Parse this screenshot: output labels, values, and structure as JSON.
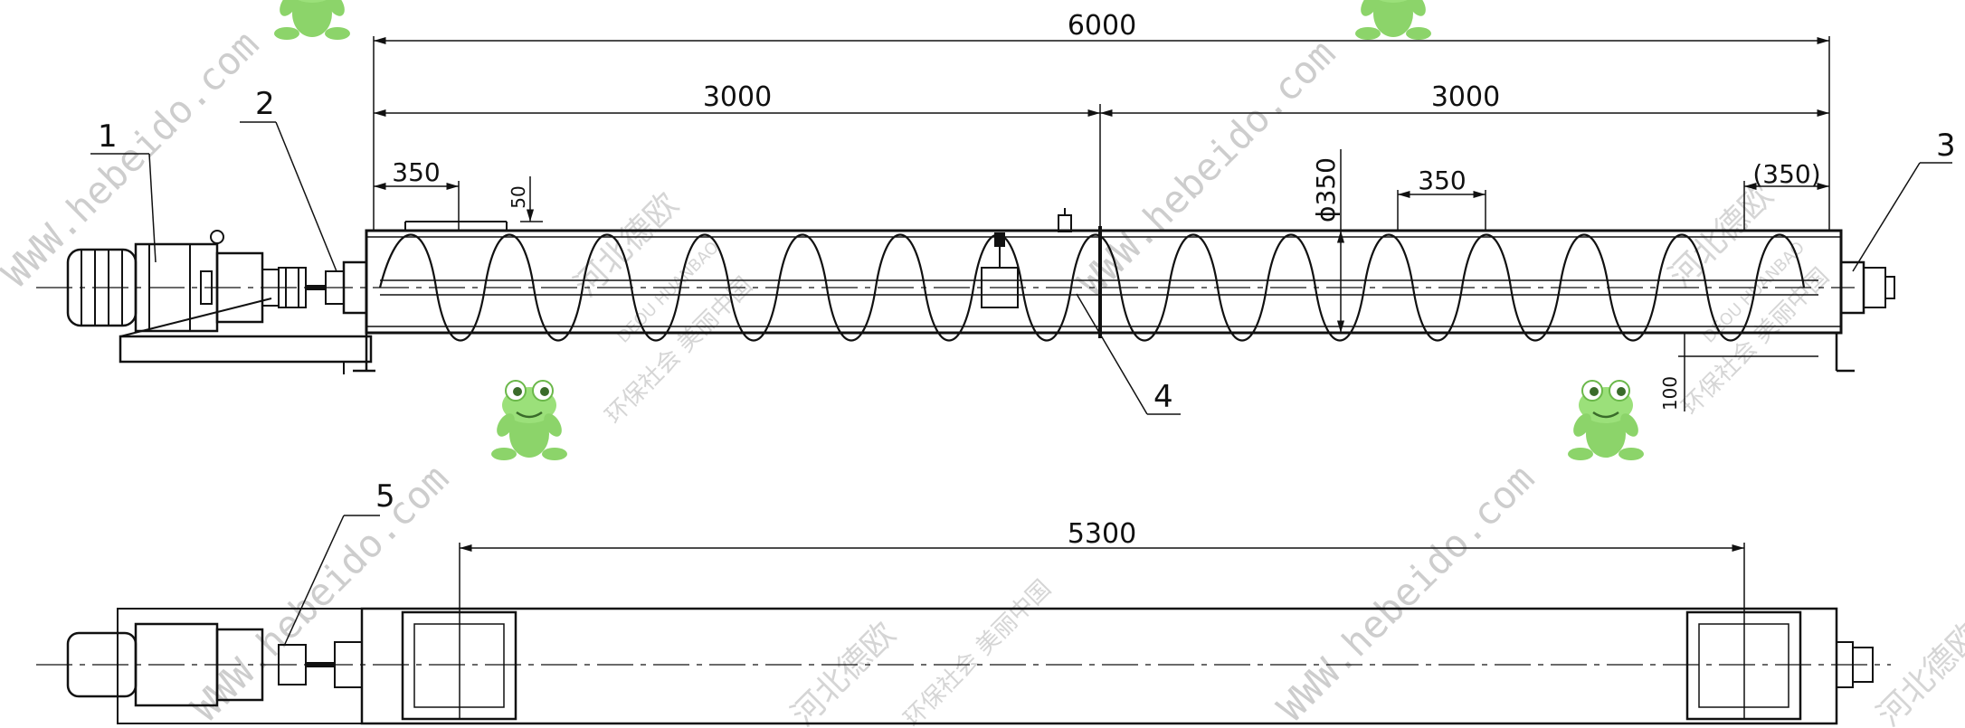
{
  "dimensions": {
    "overall_length": "6000",
    "section_left": "3000",
    "section_right": "3000",
    "pitch_left": "350",
    "pitch_right": "350",
    "end_pitch_ref": "(350)",
    "flange_height": "50",
    "screw_diameter": "ϕ350",
    "leg_height": "100",
    "inlet_outlet_span": "5300"
  },
  "callouts": [
    "1",
    "2",
    "3",
    "4",
    "5"
  ],
  "watermarks": {
    "url": "WWW.hebeido.com",
    "brand_cn": "河北德欧",
    "slogan_cn": "环保社会  美丽中国",
    "brand_en": "DEOU HUANBAO"
  },
  "colors": {
    "line": "#111111",
    "watermark": "#bdbdbd",
    "frog_green": "#8cd46a"
  },
  "icons": [
    "frog-mascot-icon"
  ]
}
